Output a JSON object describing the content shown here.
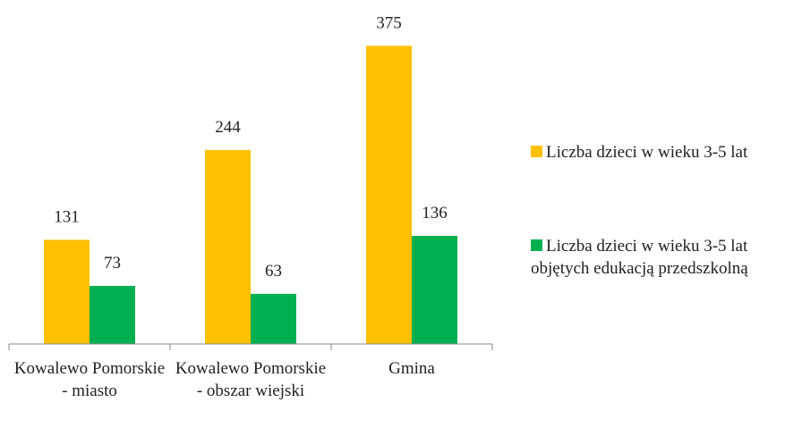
{
  "chart_data": {
    "type": "bar",
    "categories": [
      "Kowalewo Pomorskie - miasto",
      "Kowalewo Pomorskie - obszar wiejski",
      "Gmina"
    ],
    "series": [
      {
        "name": "Liczba dzieci w wieku 3-5 lat",
        "color": "#FFC000",
        "values": [
          131,
          244,
          375
        ]
      },
      {
        "name": "Liczba dzieci w wieku 3-5 lat objętych edukacją przedszkolną",
        "color": "#00B050",
        "values": [
          73,
          63,
          136
        ]
      }
    ],
    "ylim": [
      0,
      400
    ],
    "legend": "right"
  }
}
